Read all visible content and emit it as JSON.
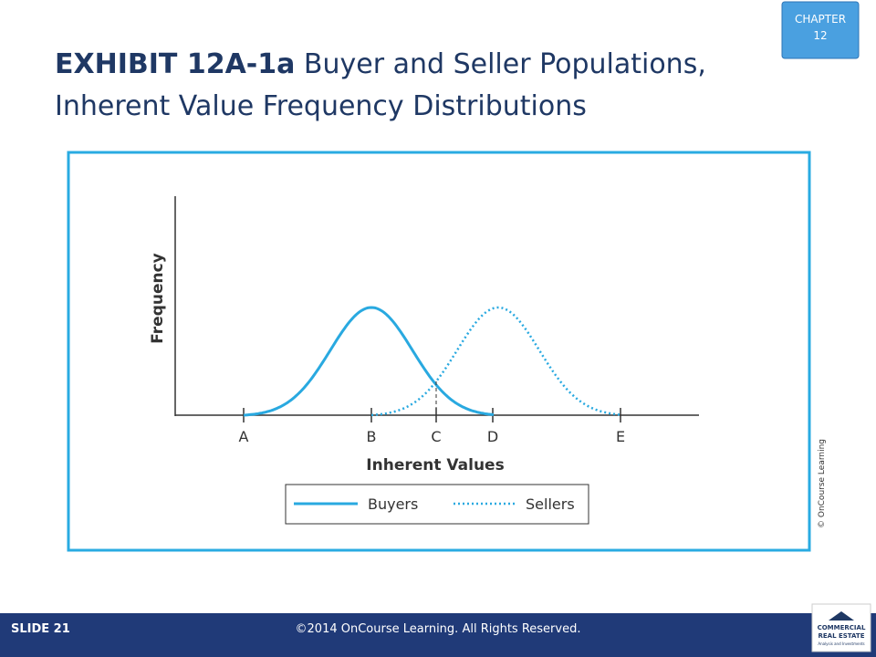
{
  "chapter_badge": {
    "line1": "CHAPTER",
    "line2": "12"
  },
  "title": {
    "exhibit": "EXHIBIT 12A-1a",
    "line1": "Buyer and Seller Populations,",
    "line2": "Inherent Value Frequency Distributions"
  },
  "figure": {
    "y_axis_label": "Frequency",
    "x_axis_label": "Inherent Values",
    "x_points": [
      "A",
      "B",
      "C",
      "D",
      "E"
    ],
    "legend": [
      "Buyers",
      "Sellers"
    ]
  },
  "credit": "© OnCourse Learning",
  "footer": {
    "slide": "SLIDE 21",
    "copyright": "©2014 OnCourse Learning. All Rights Reserved.",
    "logo": [
      "COMMERCIAL",
      "REAL ESTATE",
      "Analysis and Investments"
    ]
  }
}
